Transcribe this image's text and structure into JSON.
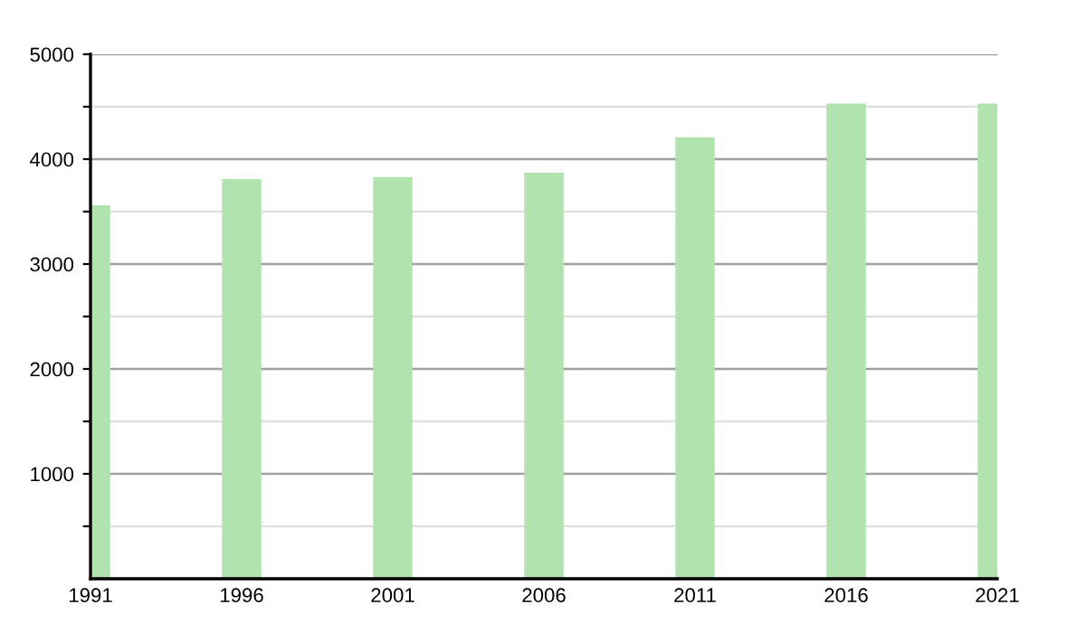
{
  "chart_data": {
    "type": "bar",
    "x": [
      1991,
      1996,
      2001,
      2006,
      2011,
      2016,
      2021
    ],
    "values": [
      3560,
      3810,
      3830,
      3870,
      4210,
      4530,
      4530
    ],
    "color": "#b0e3ad",
    "xlim": [
      1991,
      2021
    ],
    "xticks": [
      1991,
      1996,
      2001,
      2006,
      2011,
      2016,
      2021
    ],
    "ylim": [
      0,
      5000
    ],
    "yticks": [
      {
        "value": 500,
        "label": null
      },
      1000,
      {
        "value": 1500,
        "label": null
      },
      2000,
      {
        "value": 2500,
        "label": null
      },
      3000,
      {
        "value": 3500,
        "label": null
      },
      4000,
      {
        "value": 4500,
        "label": null
      },
      5000
    ],
    "grid": "y"
  }
}
